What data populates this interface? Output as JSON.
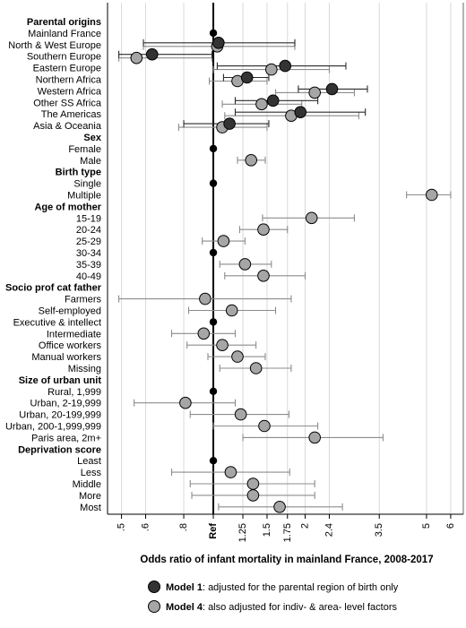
{
  "chart_data": {
    "type": "scatter",
    "title": "Odds ratio of infant mortality in mainland France, 2008-2017",
    "xscale": "log",
    "xlim": [
      0.45,
      6.6
    ],
    "x_ticks": [
      {
        "value": 0.5,
        "label": ".5"
      },
      {
        "value": 0.6,
        "label": ".6"
      },
      {
        "value": 0.8,
        "label": ".8"
      },
      {
        "value": 1,
        "label": "Ref"
      },
      {
        "value": 1.25,
        "label": "1.25"
      },
      {
        "value": 1.5,
        "label": "1.5"
      },
      {
        "value": 1.75,
        "label": "1.75"
      },
      {
        "value": 2,
        "label": "2"
      },
      {
        "value": 2.4,
        "label": "2.4"
      },
      {
        "value": 3.5,
        "label": "3.5"
      },
      {
        "value": 5,
        "label": "5"
      },
      {
        "value": 6,
        "label": "6"
      }
    ],
    "grid": true,
    "legend_position": "bottom",
    "legend": [
      {
        "series": "model1",
        "name": "Model 1",
        "description": ": adjusted for the parental region of birth only",
        "color": "#333333"
      },
      {
        "series": "model4",
        "name": "Model 4",
        "description": ": also adjusted for indiv- & area- level factors",
        "color": "#a6a6a6"
      }
    ],
    "rows": [
      {
        "label": "Parental origins",
        "header": true
      },
      {
        "label": "Mainland France",
        "ref": true
      },
      {
        "label": "North & West Europe",
        "m1": {
          "or": 1.04,
          "lo": 0.59,
          "hi": 1.85
        },
        "m4": {
          "or": 1.03,
          "lo": 0.59,
          "hi": 1.85
        }
      },
      {
        "label": "Southern Europe",
        "m1": {
          "or": 0.63,
          "lo": 0.49,
          "hi": 0.99
        },
        "m4": {
          "or": 0.56,
          "lo": 0.49,
          "hi": 0.99
        }
      },
      {
        "label": "Eastern Europe",
        "m1": {
          "or": 1.72,
          "lo": 1.03,
          "hi": 2.72
        },
        "m4": {
          "or": 1.55,
          "lo": 1.0,
          "hi": 2.4
        }
      },
      {
        "label": "Northern Africa",
        "m1": {
          "or": 1.29,
          "lo": 1.08,
          "hi": 1.52
        },
        "m4": {
          "or": 1.2,
          "lo": 0.97,
          "hi": 1.5
        }
      },
      {
        "label": "Western Africa",
        "m1": {
          "or": 2.45,
          "lo": 1.9,
          "hi": 3.2
        },
        "m4": {
          "or": 2.15,
          "lo": 1.6,
          "hi": 2.9
        }
      },
      {
        "label": "Other SS Africa",
        "m1": {
          "or": 1.57,
          "lo": 1.18,
          "hi": 2.2
        },
        "m4": {
          "or": 1.44,
          "lo": 1.07,
          "hi": 1.95
        }
      },
      {
        "label": "The Americas",
        "m1": {
          "or": 1.93,
          "lo": 1.18,
          "hi": 3.15
        },
        "m4": {
          "or": 1.8,
          "lo": 1.09,
          "hi": 3.0
        }
      },
      {
        "label": "Asia & Oceania",
        "m1": {
          "or": 1.13,
          "lo": 0.8,
          "hi": 1.52
        },
        "m4": {
          "or": 1.07,
          "lo": 0.77,
          "hi": 1.5
        }
      },
      {
        "label": "Sex",
        "header": true
      },
      {
        "label": "Female",
        "ref": true
      },
      {
        "label": "Male",
        "m4": {
          "or": 1.33,
          "lo": 1.2,
          "hi": 1.48
        }
      },
      {
        "label": "Birth type",
        "header": true
      },
      {
        "label": "Single",
        "ref": true
      },
      {
        "label": "Multiple",
        "m4": {
          "or": 5.2,
          "lo": 4.3,
          "hi": 6.0
        }
      },
      {
        "label": "Age of mother",
        "header": true
      },
      {
        "label": "15-19",
        "m4": {
          "or": 2.1,
          "lo": 1.45,
          "hi": 2.9
        }
      },
      {
        "label": "20-24",
        "m4": {
          "or": 1.46,
          "lo": 1.22,
          "hi": 1.75
        }
      },
      {
        "label": "25-29",
        "m4": {
          "or": 1.08,
          "lo": 0.92,
          "hi": 1.27
        }
      },
      {
        "label": "30-34",
        "ref": true
      },
      {
        "label": "35-39",
        "m4": {
          "or": 1.27,
          "lo": 1.05,
          "hi": 1.55
        }
      },
      {
        "label": "40-49",
        "m4": {
          "or": 1.46,
          "lo": 1.09,
          "hi": 2.0
        }
      },
      {
        "label": "Socio prof cat father",
        "header": true
      },
      {
        "label": "Farmers",
        "m4": {
          "or": 0.94,
          "lo": 0.49,
          "hi": 1.8
        }
      },
      {
        "label": "Self-employed",
        "m4": {
          "or": 1.15,
          "lo": 0.83,
          "hi": 1.6
        }
      },
      {
        "label": "Executive & intellect",
        "ref": true
      },
      {
        "label": "Intermediate",
        "m4": {
          "or": 0.93,
          "lo": 0.73,
          "hi": 1.18
        }
      },
      {
        "label": "Office workers",
        "m4": {
          "or": 1.07,
          "lo": 0.82,
          "hi": 1.38
        }
      },
      {
        "label": "Manual workers",
        "m4": {
          "or": 1.2,
          "lo": 0.96,
          "hi": 1.48
        }
      },
      {
        "label": "Missing",
        "m4": {
          "or": 1.38,
          "lo": 1.05,
          "hi": 1.8
        }
      },
      {
        "label": "Size of urban unit",
        "header": true
      },
      {
        "label": "Rural, 1,999",
        "ref": true
      },
      {
        "label": "Urban, 2-19,999",
        "m4": {
          "or": 0.81,
          "lo": 0.55,
          "hi": 1.18
        }
      },
      {
        "label": "Urban, 20-199,999",
        "m4": {
          "or": 1.23,
          "lo": 0.84,
          "hi": 1.77
        }
      },
      {
        "label": "Urban, 200-1,999,999",
        "m4": {
          "or": 1.47,
          "lo": 1.0,
          "hi": 2.2
        }
      },
      {
        "label": "Paris area, 2m+",
        "m4": {
          "or": 2.15,
          "lo": 1.25,
          "hi": 3.6
        }
      },
      {
        "label": "Deprivation score",
        "header": true
      },
      {
        "label": "Least",
        "ref": true
      },
      {
        "label": "Less",
        "m4": {
          "or": 1.14,
          "lo": 0.73,
          "hi": 1.78
        }
      },
      {
        "label": "Middle",
        "m4": {
          "or": 1.35,
          "lo": 0.84,
          "hi": 2.15
        }
      },
      {
        "label": "More",
        "m4": {
          "or": 1.35,
          "lo": 0.85,
          "hi": 2.15
        }
      },
      {
        "label": "Most",
        "m4": {
          "or": 1.65,
          "lo": 1.04,
          "hi": 2.65
        }
      }
    ]
  }
}
